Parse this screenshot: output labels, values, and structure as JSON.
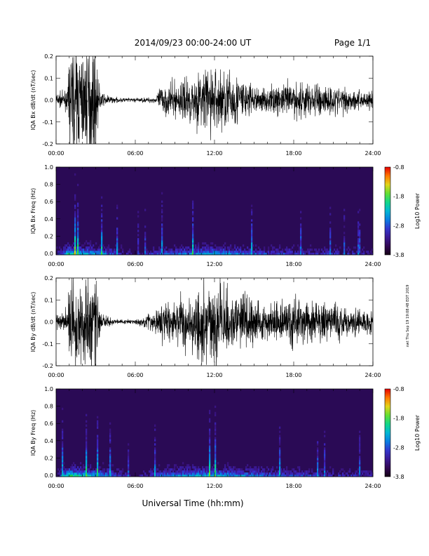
{
  "header": {
    "date_range": "2014/09/23  00:00-24:00 UT",
    "page": "Page 1/1"
  },
  "footer_xlabel": "Universal Time (hh:mm)",
  "side_stamp": "xwt Thu Sep 19 19:08:48 EDT 2019",
  "time_ticks": [
    "00:00",
    "06:00",
    "12:00",
    "18:00",
    "24:00"
  ],
  "colorbar": {
    "label": "Log10 Power",
    "ticks": [
      "-0.8",
      "-1.8",
      "-2.8",
      "-3.8"
    ]
  },
  "colors": {
    "spectrogram_background": "#2a0a55",
    "trace": "#000000"
  },
  "chart_data": [
    {
      "type": "line",
      "ylabel": "IQA Bx dB/dt (nT/sec)",
      "xlim": [
        0,
        24
      ],
      "ylim": [
        -0.2,
        0.2
      ],
      "yticks": [
        "0.2",
        "0.1",
        "0.0",
        "-0.1",
        "-0.2"
      ],
      "envelope": {
        "x_hours": [
          0,
          0.5,
          0.9,
          1.0,
          3.0,
          3.2,
          3.5,
          4.5,
          6.0,
          7.5,
          8.0,
          9.0,
          10.0,
          11.0,
          11.5,
          12.0,
          13.0,
          14.0,
          15.0,
          16.0,
          17.0,
          18.0,
          19.0,
          20.0,
          21.0,
          22.0,
          23.0,
          24.0
        ],
        "amplitude": [
          0.03,
          0.03,
          0.04,
          0.2,
          0.2,
          0.08,
          0.025,
          0.01,
          0.008,
          0.012,
          0.06,
          0.07,
          0.09,
          0.11,
          0.15,
          0.13,
          0.12,
          0.1,
          0.05,
          0.05,
          0.06,
          0.08,
          0.07,
          0.07,
          0.06,
          0.05,
          0.04,
          0.04
        ]
      }
    },
    {
      "type": "heatmap",
      "ylabel": "IQA Bx Freq (Hz)",
      "xlim": [
        0,
        24
      ],
      "ylim": [
        0.0,
        1.0
      ],
      "yticks": [
        "1.0",
        "0.8",
        "0.6",
        "0.4",
        "0.2",
        "0.0"
      ],
      "zlim": [
        -3.8,
        -0.8
      ],
      "activity": {
        "x_hours": [
          0,
          1.0,
          3.5,
          6.0,
          8.0,
          10.0,
          12.0,
          14.0,
          16.0,
          18.0,
          20.0,
          22.0,
          24.0
        ],
        "low_freq_power": [
          -3.2,
          -1.8,
          -2.4,
          -3.4,
          -2.7,
          -2.4,
          -2.2,
          -2.5,
          -2.8,
          -2.8,
          -3.0,
          -3.0,
          -3.1
        ]
      }
    },
    {
      "type": "line",
      "ylabel": "IQA By dB/dt (nT/sec)",
      "xlim": [
        0,
        24
      ],
      "ylim": [
        -0.2,
        0.2
      ],
      "yticks": [
        "0.2",
        "0.1",
        "0.0",
        "-0.1",
        "-0.2"
      ],
      "envelope": {
        "x_hours": [
          0,
          0.5,
          0.9,
          1.0,
          3.0,
          3.2,
          3.5,
          4.5,
          6.0,
          7.0,
          8.0,
          9.0,
          10.0,
          11.0,
          12.0,
          13.0,
          14.0,
          15.0,
          16.0,
          17.0,
          18.0,
          19.0,
          20.0,
          21.0,
          22.0,
          23.0,
          24.0
        ],
        "amplitude": [
          0.04,
          0.04,
          0.05,
          0.2,
          0.2,
          0.08,
          0.03,
          0.01,
          0.01,
          0.03,
          0.07,
          0.09,
          0.12,
          0.15,
          0.15,
          0.14,
          0.12,
          0.08,
          0.07,
          0.08,
          0.1,
          0.09,
          0.08,
          0.08,
          0.07,
          0.05,
          0.05
        ]
      }
    },
    {
      "type": "heatmap",
      "ylabel": "IQA By Freq (Hz)",
      "xlim": [
        0,
        24
      ],
      "ylim": [
        0.0,
        1.0
      ],
      "yticks": [
        "1.0",
        "0.8",
        "0.6",
        "0.4",
        "0.2",
        "0.0"
      ],
      "zlim": [
        -3.8,
        -0.8
      ],
      "activity": {
        "x_hours": [
          0,
          1.0,
          3.5,
          6.0,
          8.0,
          10.0,
          12.0,
          14.0,
          16.0,
          18.0,
          20.0,
          22.0,
          24.0
        ],
        "low_freq_power": [
          -3.2,
          -1.7,
          -2.3,
          -3.4,
          -2.5,
          -2.2,
          -2.1,
          -2.4,
          -2.6,
          -2.7,
          -2.9,
          -3.0,
          -3.0
        ]
      }
    }
  ]
}
